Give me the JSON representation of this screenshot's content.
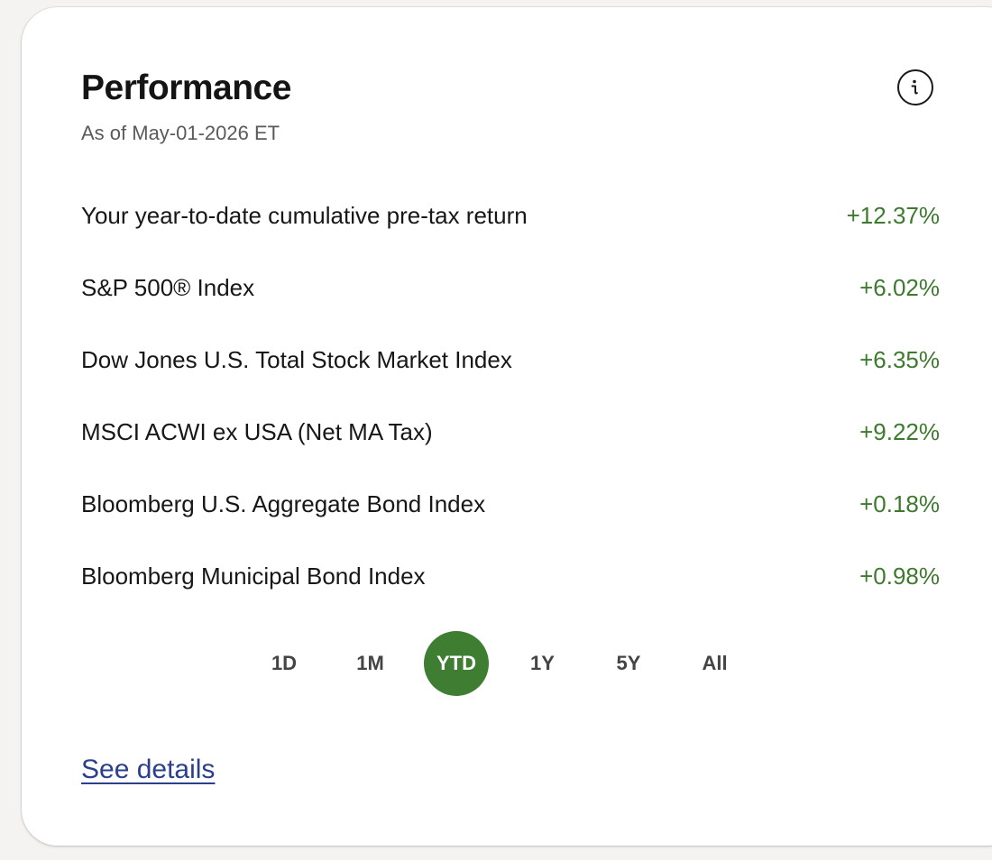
{
  "card": {
    "title": "Performance",
    "as_of": "As of May-01-2026 ET",
    "info_icon": "info-icon"
  },
  "rows": [
    {
      "label": "Your year-to-date cumulative pre-tax return",
      "value": "+12.37%"
    },
    {
      "label": "S&P 500® Index",
      "value": "+6.02%"
    },
    {
      "label": "Dow Jones U.S. Total Stock Market Index",
      "value": "+6.35%"
    },
    {
      "label": "MSCI ACWI ex USA (Net MA Tax)",
      "value": "+9.22%"
    },
    {
      "label": "Bloomberg U.S. Aggregate Bond Index",
      "value": "+0.18%"
    },
    {
      "label": "Bloomberg Municipal Bond Index",
      "value": "+0.98%"
    }
  ],
  "periods": {
    "options": [
      "1D",
      "1M",
      "YTD",
      "1Y",
      "5Y",
      "All"
    ],
    "selected": "YTD"
  },
  "see_details_label": "See details",
  "colors": {
    "positive": "#3e7a2e",
    "active_period": "#3e7d32",
    "link": "#2b3f8c"
  }
}
